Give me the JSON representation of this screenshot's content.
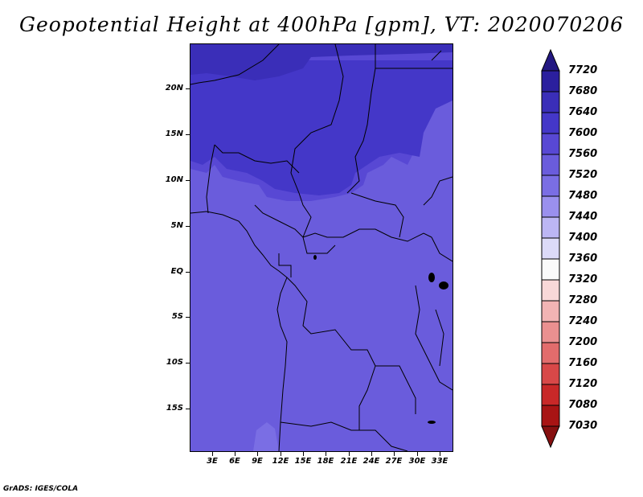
{
  "title": "Geopotential Height at 400hPa [gpm], VT: 2020070206",
  "footer": "GrADS: IGES/COLA",
  "map": {
    "lat_labels": [
      "20N",
      "15N",
      "10N",
      "5N",
      "EQ",
      "5S",
      "10S",
      "15S"
    ],
    "lon_labels": [
      "3E",
      "6E",
      "9E",
      "12E",
      "15E",
      "18E",
      "21E",
      "24E",
      "27E",
      "30E",
      "33E"
    ],
    "field_colors": {
      "7680": "#3a2eb8",
      "7640": "#4437c8",
      "7600": "#5848d4",
      "7560": "#6a5cdc",
      "7520": "#7a6ee4"
    }
  },
  "colorbar": {
    "labels": [
      "7720",
      "7680",
      "7640",
      "7600",
      "7560",
      "7520",
      "7480",
      "7440",
      "7400",
      "7360",
      "7320",
      "7280",
      "7240",
      "7200",
      "7160",
      "7120",
      "7080",
      "7030"
    ],
    "colors": [
      "#231882",
      "#2b1f9e",
      "#3a2eb8",
      "#4437c8",
      "#5848d4",
      "#6a5cdc",
      "#7a6ee4",
      "#9a90ee",
      "#bcb6f4",
      "#dcdaf8",
      "#fafafa",
      "#f8d8d8",
      "#f2b4b4",
      "#ea9090",
      "#e26c6c",
      "#d84848",
      "#c82828",
      "#a81414",
      "#861010"
    ]
  }
}
